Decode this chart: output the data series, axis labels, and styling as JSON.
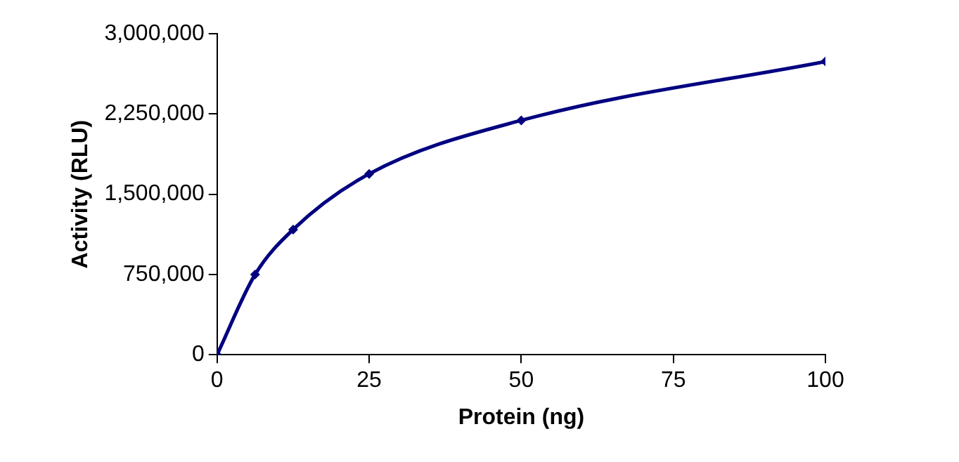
{
  "chart_data": {
    "type": "line",
    "xlabel": "Protein (ng)",
    "ylabel": "Activity (RLU)",
    "x": [
      0,
      6.25,
      12.5,
      25,
      50,
      100
    ],
    "series": [
      {
        "color": "#000080",
        "values": [
          0,
          750000,
          1170000,
          1690000,
          2190000,
          2740000
        ]
      }
    ],
    "xlim": [
      0,
      100
    ],
    "xticks": [
      0,
      25,
      50,
      75,
      100
    ],
    "ylim": [
      0,
      3000000
    ],
    "yticks": [
      0,
      {
        "value": 750000,
        "label": "750,000"
      },
      {
        "value": 1500000,
        "label": "1,500,000"
      },
      {
        "value": 2250000,
        "label": "2,250,000"
      },
      {
        "value": 3000000,
        "label": "3,000,000"
      }
    ],
    "grid": false,
    "legend": false,
    "marker": "diamond",
    "line_style": "solid"
  }
}
